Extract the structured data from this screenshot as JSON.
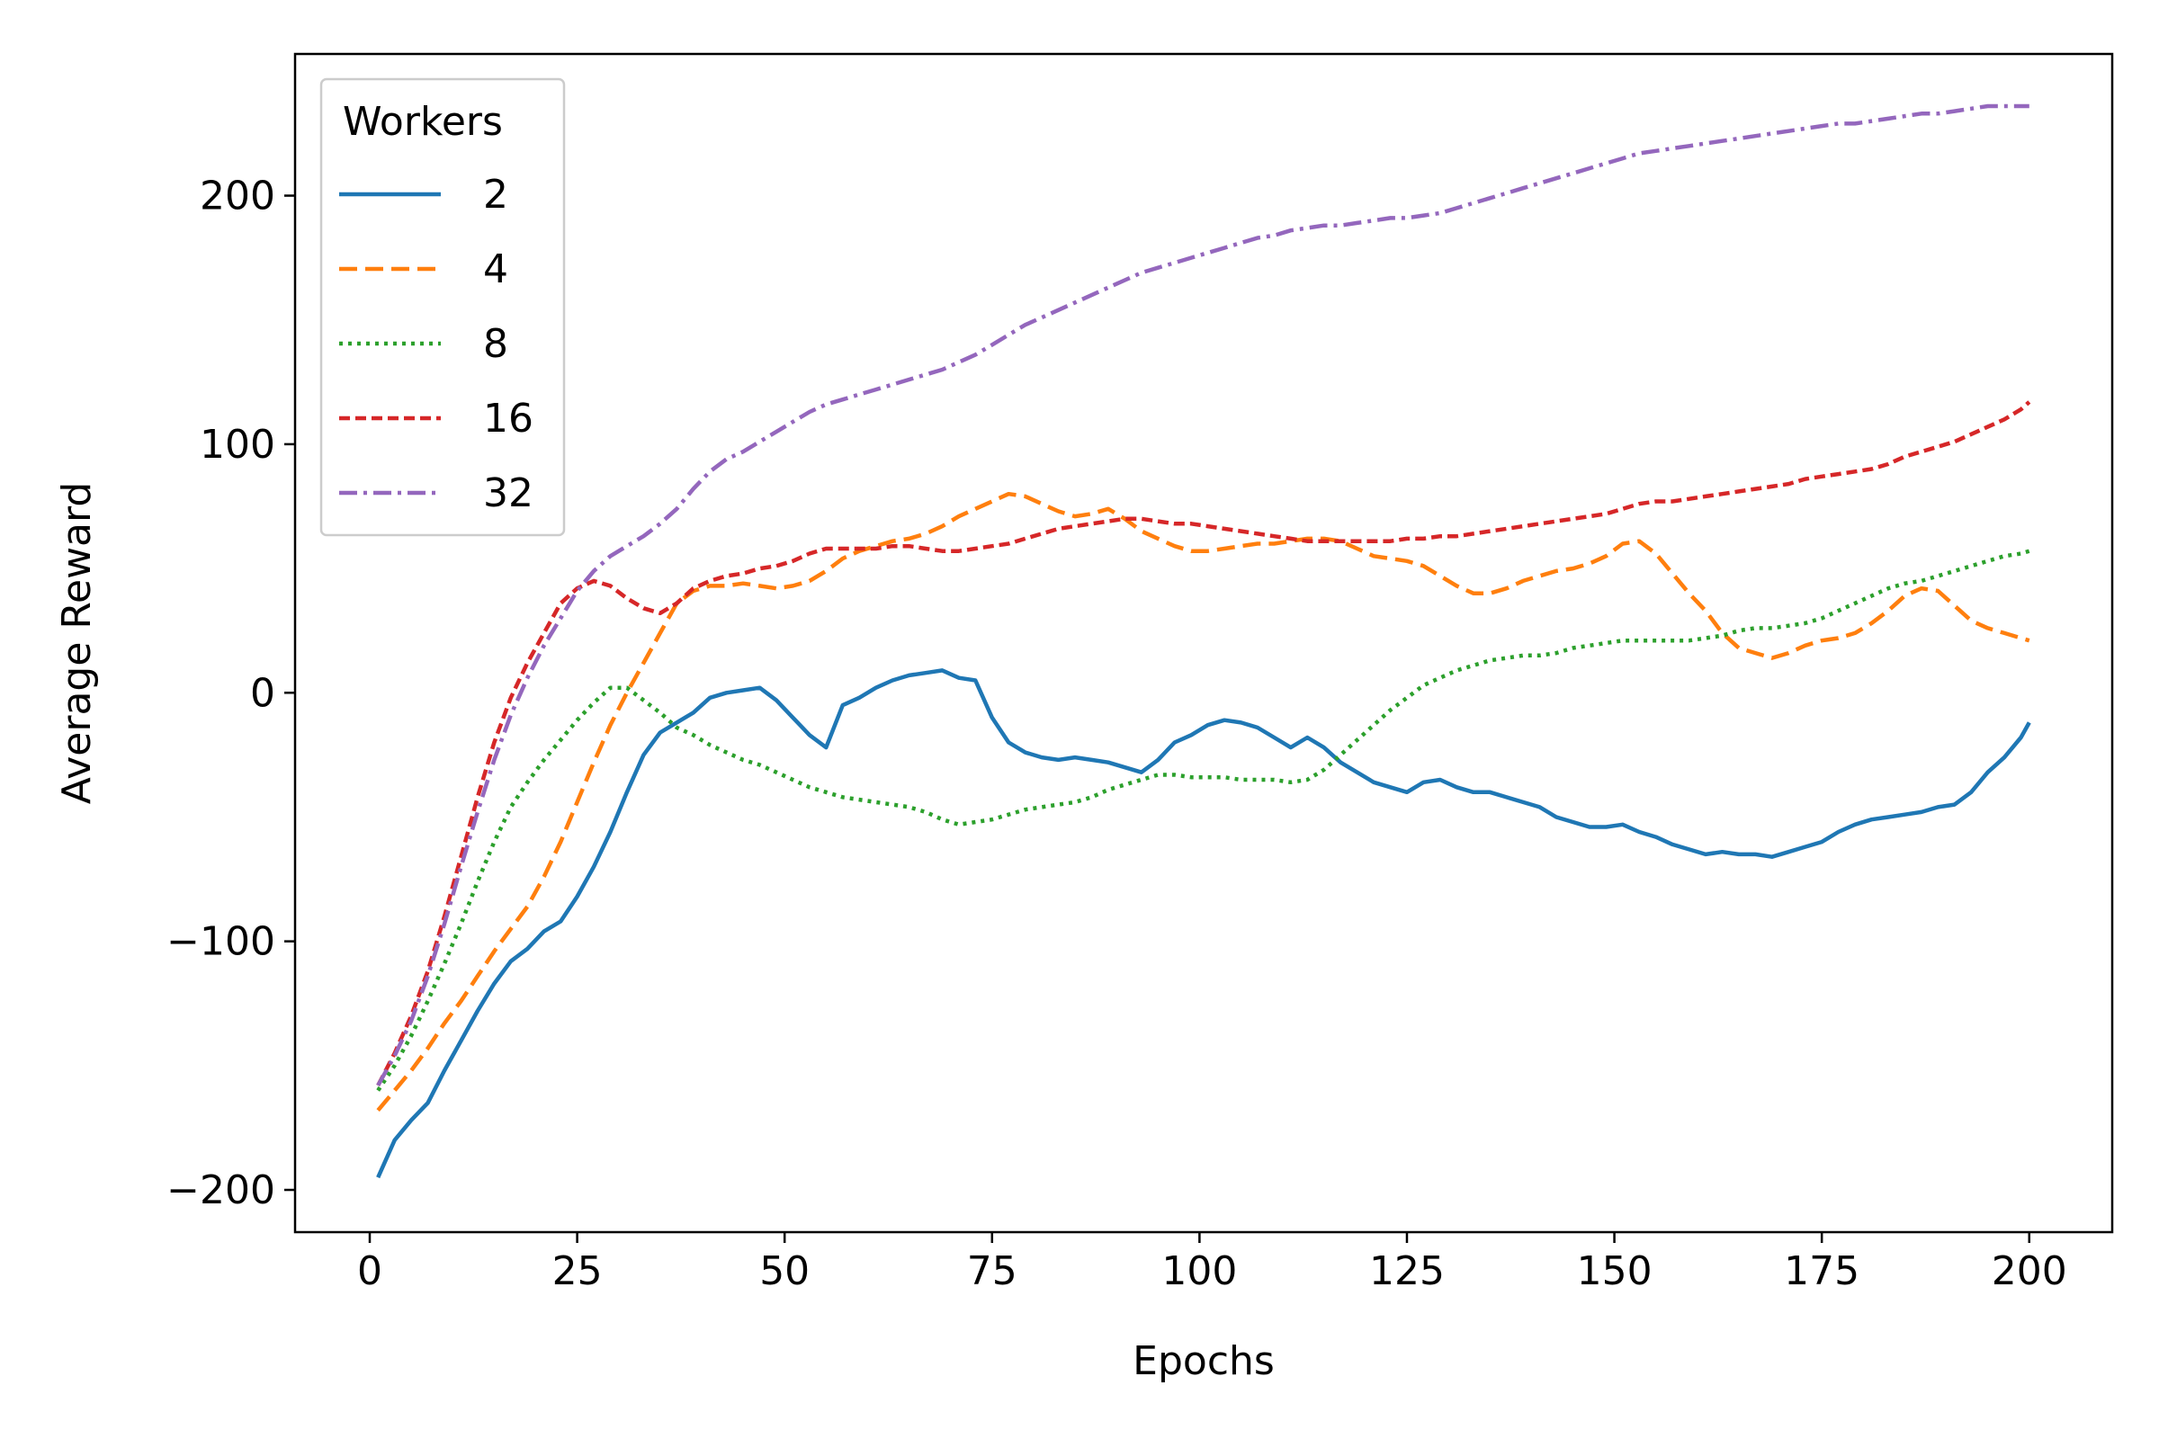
{
  "chart_data": {
    "type": "line",
    "title": "",
    "xlabel": "Epochs",
    "ylabel": "Average Reward",
    "xlim": [
      -9,
      210
    ],
    "ylim": [
      -217,
      257
    ],
    "xticks": [
      0,
      25,
      50,
      75,
      100,
      125,
      150,
      175,
      200
    ],
    "yticks": [
      -200,
      -100,
      0,
      100,
      200
    ],
    "xtick_labels": [
      "0",
      "25",
      "50",
      "75",
      "100",
      "125",
      "150",
      "175",
      "200"
    ],
    "ytick_labels": [
      "−200",
      "−100",
      "0",
      "100",
      "200"
    ],
    "grid": false,
    "legend": {
      "title": "Workers",
      "placement": "top-left"
    },
    "series": [
      {
        "name": "2",
        "color": "#1f77b4",
        "dash": "solid",
        "x": [
          1,
          3,
          5,
          7,
          9,
          11,
          13,
          15,
          17,
          19,
          21,
          23,
          25,
          27,
          29,
          31,
          33,
          35,
          37,
          39,
          41,
          43,
          45,
          47,
          49,
          51,
          53,
          55,
          57,
          59,
          61,
          63,
          65,
          67,
          69,
          71,
          73,
          75,
          77,
          79,
          81,
          83,
          85,
          87,
          89,
          91,
          93,
          95,
          97,
          99,
          101,
          103,
          105,
          107,
          109,
          111,
          113,
          115,
          117,
          119,
          121,
          123,
          125,
          127,
          129,
          131,
          133,
          135,
          137,
          139,
          141,
          143,
          145,
          147,
          149,
          151,
          153,
          155,
          157,
          159,
          161,
          163,
          165,
          167,
          169,
          171,
          173,
          175,
          177,
          179,
          181,
          183,
          185,
          187,
          189,
          191,
          193,
          195,
          197,
          199,
          200
        ],
        "y": [
          -195,
          -180,
          -172,
          -165,
          -152,
          -140,
          -128,
          -117,
          -108,
          -103,
          -96,
          -92,
          -82,
          -70,
          -56,
          -40,
          -25,
          -16,
          -12,
          -8,
          -2,
          0,
          1,
          2,
          -3,
          -10,
          -17,
          -22,
          -5,
          -2,
          2,
          5,
          7,
          8,
          9,
          6,
          5,
          -10,
          -20,
          -24,
          -26,
          -27,
          -26,
          -27,
          -28,
          -30,
          -32,
          -27,
          -20,
          -17,
          -13,
          -11,
          -12,
          -14,
          -18,
          -22,
          -18,
          -22,
          -28,
          -32,
          -36,
          -38,
          -40,
          -36,
          -35,
          -38,
          -40,
          -40,
          -42,
          -44,
          -46,
          -50,
          -52,
          -54,
          -54,
          -53,
          -56,
          -58,
          -61,
          -63,
          -65,
          -64,
          -65,
          -65,
          -66,
          -64,
          -62,
          -60,
          -56,
          -53,
          -51,
          -50,
          -49,
          -48,
          -46,
          -45,
          -40,
          -32,
          -26,
          -18,
          -12
        ]
      },
      {
        "name": "4",
        "color": "#ff7f0e",
        "dash": "dashed",
        "x": [
          1,
          3,
          5,
          7,
          9,
          11,
          13,
          15,
          17,
          19,
          21,
          23,
          25,
          27,
          29,
          31,
          33,
          35,
          37,
          39,
          41,
          43,
          45,
          47,
          49,
          51,
          53,
          55,
          57,
          59,
          61,
          63,
          65,
          67,
          69,
          71,
          73,
          75,
          77,
          79,
          81,
          83,
          85,
          87,
          89,
          91,
          93,
          95,
          97,
          99,
          101,
          103,
          105,
          107,
          109,
          111,
          113,
          115,
          117,
          119,
          121,
          123,
          125,
          127,
          129,
          131,
          133,
          135,
          137,
          139,
          141,
          143,
          145,
          147,
          149,
          151,
          153,
          155,
          157,
          159,
          161,
          163,
          165,
          167,
          169,
          171,
          173,
          175,
          177,
          179,
          181,
          183,
          185,
          187,
          189,
          191,
          193,
          195,
          197,
          199,
          200
        ],
        "y": [
          -168,
          -160,
          -152,
          -143,
          -133,
          -124,
          -114,
          -104,
          -95,
          -86,
          -74,
          -60,
          -44,
          -28,
          -13,
          0,
          12,
          24,
          36,
          41,
          43,
          43,
          44,
          43,
          42,
          43,
          45,
          49,
          54,
          57,
          59,
          61,
          62,
          64,
          67,
          71,
          74,
          77,
          80,
          79,
          76,
          73,
          71,
          72,
          74,
          70,
          65,
          62,
          59,
          57,
          57,
          58,
          59,
          60,
          60,
          61,
          62,
          62,
          61,
          58,
          55,
          54,
          53,
          51,
          47,
          43,
          40,
          40,
          42,
          45,
          47,
          49,
          50,
          52,
          55,
          60,
          61,
          56,
          48,
          40,
          33,
          24,
          18,
          16,
          14,
          16,
          19,
          21,
          22,
          24,
          28,
          33,
          39,
          42,
          41,
          35,
          29,
          26,
          24,
          22,
          21
        ]
      },
      {
        "name": "8",
        "color": "#2ca02c",
        "dash": "dotted",
        "x": [
          1,
          3,
          5,
          7,
          9,
          11,
          13,
          15,
          17,
          19,
          21,
          23,
          25,
          27,
          29,
          31,
          33,
          35,
          37,
          39,
          41,
          43,
          45,
          47,
          49,
          51,
          53,
          55,
          57,
          59,
          61,
          63,
          65,
          67,
          69,
          71,
          73,
          75,
          77,
          79,
          81,
          83,
          85,
          87,
          89,
          91,
          93,
          95,
          97,
          99,
          101,
          103,
          105,
          107,
          109,
          111,
          113,
          115,
          117,
          119,
          121,
          123,
          125,
          127,
          129,
          131,
          133,
          135,
          137,
          139,
          141,
          143,
          145,
          147,
          149,
          151,
          153,
          155,
          157,
          159,
          161,
          163,
          165,
          167,
          169,
          171,
          173,
          175,
          177,
          179,
          181,
          183,
          185,
          187,
          189,
          191,
          193,
          195,
          197,
          199,
          200
        ],
        "y": [
          -160,
          -150,
          -138,
          -124,
          -109,
          -93,
          -76,
          -60,
          -46,
          -36,
          -27,
          -19,
          -11,
          -4,
          2,
          2,
          -3,
          -8,
          -14,
          -17,
          -21,
          -24,
          -27,
          -29,
          -32,
          -35,
          -38,
          -40,
          -42,
          -43,
          -44,
          -45,
          -46,
          -48,
          -51,
          -53,
          -52,
          -51,
          -49,
          -47,
          -46,
          -45,
          -44,
          -42,
          -39,
          -37,
          -35,
          -33,
          -33,
          -34,
          -34,
          -34,
          -35,
          -35,
          -35,
          -36,
          -35,
          -31,
          -25,
          -19,
          -13,
          -7,
          -2,
          3,
          6,
          9,
          11,
          13,
          14,
          15,
          15,
          16,
          18,
          19,
          20,
          21,
          21,
          21,
          21,
          21,
          22,
          23,
          25,
          26,
          26,
          27,
          28,
          30,
          33,
          36,
          39,
          42,
          44,
          45,
          47,
          49,
          51,
          53,
          55,
          56,
          57
        ]
      },
      {
        "name": "16",
        "color": "#d62728",
        "dash": "densely-dashed",
        "x": [
          1,
          3,
          5,
          7,
          9,
          11,
          13,
          15,
          17,
          19,
          21,
          23,
          25,
          27,
          29,
          31,
          33,
          35,
          37,
          39,
          41,
          43,
          45,
          47,
          49,
          51,
          53,
          55,
          57,
          59,
          61,
          63,
          65,
          67,
          69,
          71,
          73,
          75,
          77,
          79,
          81,
          83,
          85,
          87,
          89,
          91,
          93,
          95,
          97,
          99,
          101,
          103,
          105,
          107,
          109,
          111,
          113,
          115,
          117,
          119,
          121,
          123,
          125,
          127,
          129,
          131,
          133,
          135,
          137,
          139,
          141,
          143,
          145,
          147,
          149,
          151,
          153,
          155,
          157,
          159,
          161,
          163,
          165,
          167,
          169,
          171,
          173,
          175,
          177,
          179,
          181,
          183,
          185,
          187,
          189,
          191,
          193,
          195,
          197,
          199,
          200
        ],
        "y": [
          -158,
          -145,
          -130,
          -112,
          -90,
          -66,
          -42,
          -20,
          -2,
          12,
          24,
          36,
          42,
          45,
          43,
          38,
          34,
          32,
          36,
          42,
          45,
          47,
          48,
          50,
          51,
          53,
          56,
          58,
          58,
          58,
          58,
          59,
          59,
          58,
          57,
          57,
          58,
          59,
          60,
          62,
          64,
          66,
          67,
          68,
          69,
          70,
          70,
          69,
          68,
          68,
          67,
          66,
          65,
          64,
          63,
          62,
          61,
          61,
          61,
          61,
          61,
          61,
          62,
          62,
          63,
          63,
          64,
          65,
          66,
          67,
          68,
          69,
          70,
          71,
          72,
          74,
          76,
          77,
          77,
          78,
          79,
          80,
          81,
          82,
          83,
          84,
          86,
          87,
          88,
          89,
          90,
          92,
          95,
          97,
          99,
          101,
          104,
          107,
          110,
          114,
          117
        ]
      },
      {
        "name": "32",
        "color": "#9467bd",
        "dash": "dash-dot",
        "x": [
          1,
          3,
          5,
          7,
          9,
          11,
          13,
          15,
          17,
          19,
          21,
          23,
          25,
          27,
          29,
          31,
          33,
          35,
          37,
          39,
          41,
          43,
          45,
          47,
          49,
          51,
          53,
          55,
          57,
          59,
          61,
          63,
          65,
          67,
          69,
          71,
          73,
          75,
          77,
          79,
          81,
          83,
          85,
          87,
          89,
          91,
          93,
          95,
          97,
          99,
          101,
          103,
          105,
          107,
          109,
          111,
          113,
          115,
          117,
          119,
          121,
          123,
          125,
          127,
          129,
          131,
          133,
          135,
          137,
          139,
          141,
          143,
          145,
          147,
          149,
          151,
          153,
          155,
          157,
          159,
          161,
          163,
          165,
          167,
          169,
          171,
          173,
          175,
          177,
          179,
          181,
          183,
          185,
          187,
          189,
          191,
          193,
          195,
          197,
          199,
          200
        ],
        "y": [
          -158,
          -146,
          -132,
          -114,
          -93,
          -70,
          -48,
          -27,
          -9,
          6,
          19,
          30,
          41,
          49,
          55,
          59,
          63,
          68,
          74,
          82,
          89,
          94,
          97,
          101,
          105,
          109,
          113,
          116,
          118,
          120,
          122,
          124,
          126,
          128,
          130,
          133,
          136,
          140,
          144,
          148,
          151,
          154,
          157,
          160,
          163,
          166,
          169,
          171,
          173,
          175,
          177,
          179,
          181,
          183,
          184,
          186,
          187,
          188,
          188,
          189,
          190,
          191,
          191,
          192,
          193,
          195,
          197,
          199,
          201,
          203,
          205,
          207,
          209,
          211,
          213,
          215,
          217,
          218,
          219,
          220,
          221,
          222,
          223,
          224,
          225,
          226,
          227,
          228,
          229,
          229,
          230,
          231,
          232,
          233,
          233,
          234,
          235,
          236,
          236,
          236,
          236
        ]
      }
    ]
  }
}
